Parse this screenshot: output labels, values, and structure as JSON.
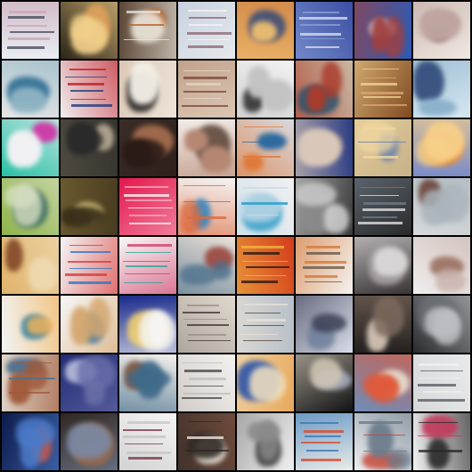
{
  "grid": {
    "rows": 8,
    "cols": 8,
    "background": "#000000"
  },
  "tiles": [
    {
      "bg": "#e9eef3",
      "fg": "#4a4d5c",
      "accent": "#c9a7b6",
      "kind": "text"
    },
    {
      "bg": "#2b2417",
      "fg": "#d9a05a",
      "accent": "#f1d08a",
      "kind": "blob"
    },
    {
      "bg": "#5b4636",
      "fg": "#b9622d",
      "accent": "#e8e2d6",
      "kind": "mixed"
    },
    {
      "bg": "#c8d2de",
      "fg": "#8e6b78",
      "accent": "#f2f2f2",
      "kind": "text"
    },
    {
      "bg": "#d48a4a",
      "fg": "#3b4d7a",
      "accent": "#f0c070",
      "kind": "blob"
    },
    {
      "bg": "#3a4fa3",
      "fg": "#d9dbe8",
      "accent": "#8aa0d8",
      "kind": "text"
    },
    {
      "bg": "#2c5bb5",
      "fg": "#e7e7e7",
      "accent": "#a04040",
      "kind": "blob"
    },
    {
      "bg": "#efe9e2",
      "fg": "#7b5c52",
      "accent": "#bfa5a0",
      "kind": "blob"
    },
    {
      "bg": "#e6e6e6",
      "fg": "#2f6e92",
      "accent": "#8fb4c4",
      "kind": "blob"
    },
    {
      "bg": "#f0f0f0",
      "fg": "#1f3f80",
      "accent": "#c21f2a",
      "kind": "text"
    },
    {
      "bg": "#dcc7b4",
      "fg": "#2d2a2a",
      "accent": "#f3efe6",
      "kind": "blob"
    },
    {
      "bg": "#c2a28b",
      "fg": "#7b4b3c",
      "accent": "#e5d5c4",
      "kind": "text"
    },
    {
      "bg": "#f2f2f2",
      "fg": "#373737",
      "accent": "#c3c3c3",
      "kind": "blob"
    },
    {
      "bg": "#c9b8a3",
      "fg": "#26506c",
      "accent": "#ab3b2b",
      "kind": "blob"
    },
    {
      "bg": "#7f4a22",
      "fg": "#dba66d",
      "accent": "#f2cf8f",
      "kind": "text"
    },
    {
      "bg": "#d7e7f1",
      "fg": "#233d6f",
      "accent": "#8cb2cc",
      "kind": "blob"
    },
    {
      "bg": "#27c0a5",
      "fg": "#cf3aa6",
      "accent": "#f4f1f4",
      "kind": "blob"
    },
    {
      "bg": "#4f4a3e",
      "fg": "#c0b39b",
      "accent": "#2a2a2a",
      "kind": "blob"
    },
    {
      "bg": "#3a2c28",
      "fg": "#a06a4c",
      "accent": "#2a1b16",
      "kind": "blob"
    },
    {
      "bg": "#f1ede8",
      "fg": "#5a4235",
      "accent": "#b68873",
      "kind": "blob"
    },
    {
      "bg": "#d7d9df",
      "fg": "#2d6aa0",
      "accent": "#e07a3a",
      "kind": "mixed"
    },
    {
      "bg": "#2c3c83",
      "fg": "#9c8d8a",
      "accent": "#d9c8b9",
      "kind": "blob"
    },
    {
      "bg": "#c6b28a",
      "fg": "#5e7bb3",
      "accent": "#f0d7a0",
      "kind": "mixed"
    },
    {
      "bg": "#7a8cc8",
      "fg": "#ef8b2a",
      "accent": "#f7d08a",
      "kind": "blob"
    },
    {
      "bg": "#8fb34a",
      "fg": "#275b5a",
      "accent": "#d8e0c3",
      "kind": "blob"
    },
    {
      "bg": "#6b5a2f",
      "fg": "#d6c37c",
      "accent": "#3b2f1a",
      "kind": "blob"
    },
    {
      "bg": "#e4164d",
      "fg": "#f4f4f4",
      "accent": "#f6a6b8",
      "kind": "text"
    },
    {
      "bg": "#f4f4f4",
      "fg": "#3a88c0",
      "accent": "#db6a3f",
      "kind": "mixed"
    },
    {
      "bg": "#f0f0f0",
      "fg": "#2a9ac8",
      "accent": "#c6dbe8",
      "kind": "mixed"
    },
    {
      "bg": "#3a3a3a",
      "fg": "#8b8b8b",
      "accent": "#cfcfcf",
      "kind": "blob"
    },
    {
      "bg": "#2a2a2a",
      "fg": "#e0e0e0",
      "accent": "#6d7a86",
      "kind": "text"
    },
    {
      "bg": "#d6d9db",
      "fg": "#6d4a3f",
      "accent": "#a9b3ba",
      "kind": "blob"
    },
    {
      "bg": "#e0b46a",
      "fg": "#7a3c1f",
      "accent": "#f0ddb8",
      "kind": "blob"
    },
    {
      "bg": "#f5f5f5",
      "fg": "#2b78c4",
      "accent": "#d73c3c",
      "kind": "text"
    },
    {
      "bg": "#f7f7f7",
      "fg": "#2aa69b",
      "accent": "#d0426a",
      "kind": "text"
    },
    {
      "bg": "#ece1d6",
      "fg": "#9e4f47",
      "accent": "#4b6f8b",
      "kind": "blob"
    },
    {
      "bg": "#d33d1b",
      "fg": "#2a1a14",
      "accent": "#f0b444",
      "kind": "text"
    },
    {
      "bg": "#f4f3f0",
      "fg": "#6b5a4a",
      "accent": "#d47a3a",
      "kind": "text"
    },
    {
      "bg": "#3a3435",
      "fg": "#a9a3a5",
      "accent": "#e5e1e2",
      "kind": "blob"
    },
    {
      "bg": "#f0eeee",
      "fg": "#8d5a4a",
      "accent": "#c8b3ac",
      "kind": "blob"
    },
    {
      "bg": "#f1f4f5",
      "fg": "#2f7fa0",
      "accent": "#f3b35a",
      "kind": "blob"
    },
    {
      "bg": "#f7f7f7",
      "fg": "#3a6f93",
      "accent": "#d5a770",
      "kind": "blob"
    },
    {
      "bg": "#1a2a8a",
      "fg": "#f0d070",
      "accent": "#f6f6f6",
      "kind": "blob"
    },
    {
      "bg": "#e0d9cd",
      "fg": "#3d3a3a",
      "accent": "#9a918a",
      "kind": "text"
    },
    {
      "bg": "#b8c0c8",
      "fg": "#594638",
      "accent": "#e6e1d9",
      "kind": "text"
    },
    {
      "bg": "#d9dde8",
      "fg": "#6a7c99",
      "accent": "#3b3f56",
      "kind": "blob"
    },
    {
      "bg": "#23201e",
      "fg": "#d6c6b8",
      "accent": "#7d6a5e",
      "kind": "blob"
    },
    {
      "bg": "#2b2c2f",
      "fg": "#6b6e73",
      "accent": "#bcbfc4",
      "kind": "blob"
    },
    {
      "bg": "#e1d8cd",
      "fg": "#4c6f91",
      "accent": "#a05a3a",
      "kind": "mixed"
    },
    {
      "bg": "#1f2a74",
      "fg": "#c7cbe6",
      "accent": "#6a6fa9",
      "kind": "blob"
    },
    {
      "bg": "#f4f0ea",
      "fg": "#7a5a4a",
      "accent": "#3f6a8a",
      "kind": "blob"
    },
    {
      "bg": "#f3f2f0",
      "fg": "#4c4a47",
      "accent": "#c3beb9",
      "kind": "text"
    },
    {
      "bg": "#e8a85a",
      "fg": "#3b5ea8",
      "accent": "#f0e0c0",
      "kind": "blob"
    },
    {
      "bg": "#121214",
      "fg": "#a9b1c1",
      "accent": "#d0c6b4",
      "kind": "blob"
    },
    {
      "bg": "#6f8cb7",
      "fg": "#e4d6c6",
      "accent": "#e05a3a",
      "kind": "blob"
    },
    {
      "bg": "#d6d8da",
      "fg": "#5a5e63",
      "accent": "#f0f0f0",
      "kind": "text"
    },
    {
      "bg": "#0d1a4a",
      "fg": "#e45a3a",
      "accent": "#4b7ac8",
      "kind": "blob"
    },
    {
      "bg": "#302620",
      "fg": "#9a6a4a",
      "accent": "#7a8aa6",
      "kind": "blob"
    },
    {
      "bg": "#f4f4f4",
      "fg": "#7a3a4a",
      "accent": "#c5c5c5",
      "kind": "text"
    },
    {
      "bg": "#6e4b3c",
      "fg": "#f0e6dc",
      "accent": "#2f2824",
      "kind": "mixed"
    },
    {
      "bg": "#f0f0f0",
      "fg": "#2c2c2c",
      "accent": "#8a8a8a",
      "kind": "blob"
    },
    {
      "bg": "#e8ece9",
      "fg": "#d94a2a",
      "accent": "#3a78b6",
      "kind": "text"
    },
    {
      "bg": "#eef0f2",
      "fg": "#c84030",
      "accent": "#6a7a8a",
      "kind": "mixed"
    },
    {
      "bg": "#f2f2f2",
      "fg": "#c23b5c",
      "accent": "#2a2a2a",
      "kind": "mixed"
    }
  ]
}
